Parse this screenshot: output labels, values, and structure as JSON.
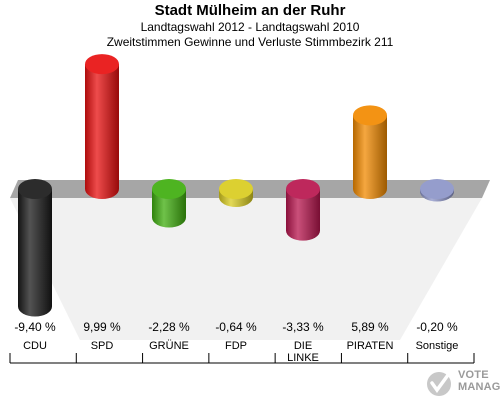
{
  "header": {
    "title": "Stadt Mülheim an der Ruhr",
    "subtitle1": "Landtagswahl 2012 - Landtagswahl 2010",
    "subtitle2": "Zweitstimmen Gewinne und Verluste Stimmbezirk 211"
  },
  "chart_data": {
    "type": "bar",
    "title": "Stadt Mülheim an der Ruhr",
    "categories": [
      "CDU",
      "SPD",
      "GRÜNE",
      "FDP",
      "DIE LINKE",
      "PIRATEN",
      "Sonstige"
    ],
    "category_lines": [
      [
        "CDU"
      ],
      [
        "SPD"
      ],
      [
        "GRÜNE"
      ],
      [
        "FDP"
      ],
      [
        "DIE",
        "LINKE"
      ],
      [
        "PIRATEN"
      ],
      [
        "Sonstige"
      ]
    ],
    "values": [
      -9.4,
      9.99,
      -2.28,
      -0.64,
      -3.33,
      5.89,
      -0.2
    ],
    "value_labels": [
      "-9,40 %",
      "9,99 %",
      "-2,28 %",
      "-0,64 %",
      "-3,33 %",
      "5,89 %",
      "-0,20 %"
    ],
    "colors": [
      "#1a1a1a",
      "#e81010",
      "#3fae0e",
      "#d9cc1f",
      "#b8154e",
      "#f28a00",
      "#8c94c8"
    ],
    "ylim": [
      -10,
      10
    ],
    "grid": false,
    "legend": "none"
  },
  "watermark": {
    "line1": "VOTE",
    "line2": "MANAGER"
  }
}
